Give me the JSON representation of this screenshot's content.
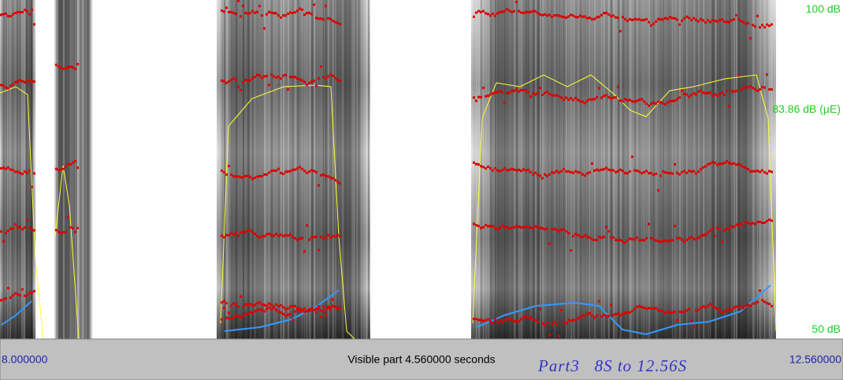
{
  "scale": {
    "top": "100 dB",
    "mid": "83.86 dB (µE)",
    "bottom": "50 dB"
  },
  "time_bar": {
    "start": "8.000000",
    "visible": "Visible part 4.560000 seconds",
    "end": "12.560000"
  },
  "annotation": "Part3   8S to 12.56S"
}
